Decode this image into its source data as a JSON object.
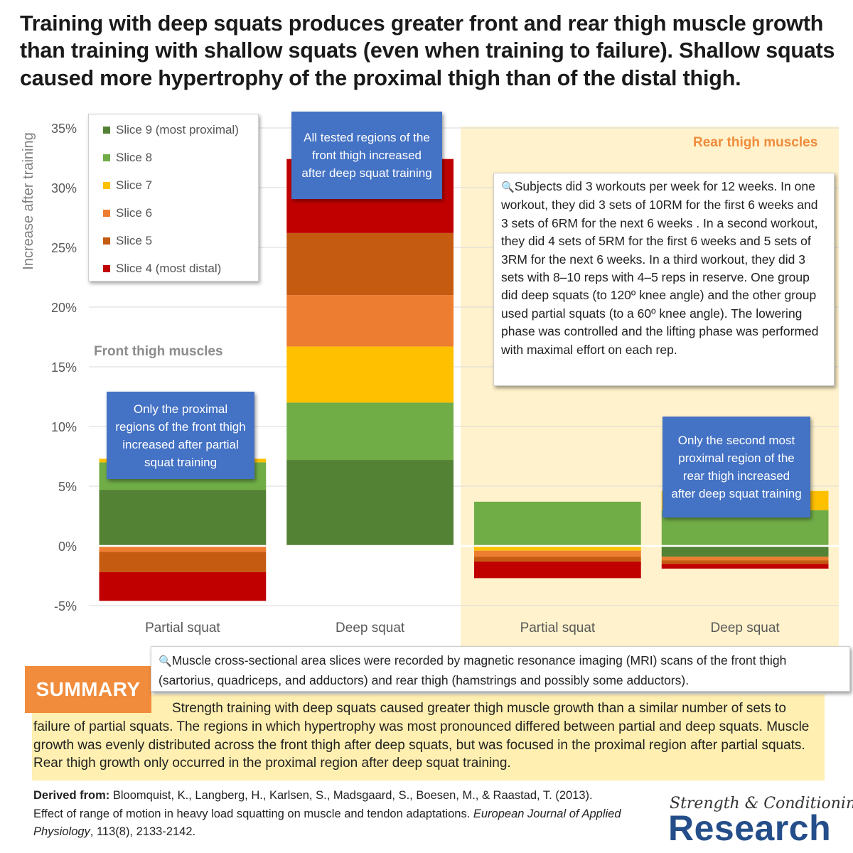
{
  "title": "Training with deep squats produces greater front and rear thigh muscle growth than training with shallow squats (even when training to failure). Shallow squats caused more hypertrophy of the proximal thigh than of the distal thigh.",
  "chart_data": {
    "type": "bar",
    "stacked": true,
    "ylabel": "Increase after training",
    "ylim": [
      -5,
      35
    ],
    "yticks": [
      -5,
      0,
      5,
      10,
      15,
      20,
      25,
      30,
      35
    ],
    "ytick_labels": [
      "-5%",
      "0%",
      "5%",
      "10%",
      "15%",
      "20%",
      "25%",
      "30%",
      "35%"
    ],
    "categories": [
      "Partial squat",
      "Deep squat",
      "Partial squat",
      "Deep squat"
    ],
    "groups": [
      {
        "name": "Front thigh muscles",
        "categories": [
          0,
          1
        ]
      },
      {
        "name": "Rear thigh muscles",
        "categories": [
          2,
          3
        ]
      }
    ],
    "series": [
      {
        "name": "Slice 9 (most proximal)",
        "color": "#548235",
        "values": [
          4.7,
          7.2,
          0.0,
          -0.9
        ]
      },
      {
        "name": "Slice 8",
        "color": "#70ad47",
        "values": [
          2.3,
          4.8,
          3.7,
          3.0
        ]
      },
      {
        "name": "Slice 7",
        "color": "#ffc000",
        "values": [
          0.3,
          4.7,
          -0.4,
          1.6
        ]
      },
      {
        "name": "Slice 6",
        "color": "#ed7d31",
        "values": [
          -0.5,
          4.3,
          -0.5,
          -0.3
        ]
      },
      {
        "name": "Slice 5",
        "color": "#c55a11",
        "values": [
          -1.7,
          5.2,
          -0.4,
          -0.3
        ]
      },
      {
        "name": "Slice 4 (most distal)",
        "color": "#c00000",
        "values": [
          -2.4,
          6.2,
          -1.4,
          -0.4
        ]
      }
    ]
  },
  "annotations": {
    "front_label": "Front thigh muscles",
    "rear_label": "Rear thigh muscles",
    "callout_deep": "All tested regions of the front thigh increased after deep squat training",
    "callout_partial": "Only the proximal regions of the front thigh increased after partial squat training",
    "callout_rear": "Only the second most proximal region of the rear thigh increased after deep squat training",
    "methods": "Subjects did 3 workouts per week for 12 weeks. In one workout, they did 3 sets of 10RM for the first 6 weeks and 3 sets of 6RM for the next 6 weeks . In a second workout, they did 4 sets of 5RM for the first 6 weeks and 5 sets of 3RM for the next 6 weeks. In a third workout, they did 3 sets with 8–10 reps with 4–5 reps in reserve. One group did deep squats (to 120º knee angle) and the other group used partial squats (to a 60º knee angle). The lowering phase was controlled and the lifting phase was performed with maximal effort on each rep.",
    "mri_note": "Muscle cross-sectional area slices were recorded by magnetic resonance imaging (MRI) scans of the front thigh (sartorius, quadriceps, and adductors) and rear thigh (hamstrings and possibly some adductors)."
  },
  "colors": {
    "rear_panel": "#fff2cc",
    "callout": "#4472c4",
    "summary_tag": "#f08c3c",
    "summary_box": "#ffefb0",
    "brand": "#244e89"
  },
  "summary": {
    "label": "SUMMARY",
    "text": "Strength training with deep squats caused greater thigh muscle growth than a similar number of sets to failure of partial squats. The regions in which hypertrophy was most pronounced differed between partial and deep squats. Muscle growth was evenly distributed across the front thigh after deep squats, but was focused in the proximal region after partial squats. Rear thigh growth only occurred in the proximal region after deep squat training."
  },
  "citation": {
    "label": "Derived from:",
    "authors": "Bloomquist, K., Langberg, H., Karlsen, S., Madsgaard, S., Boesen, M., & Raastad, T. (2013). Effect of range of motion in heavy load squatting on muscle and tendon adaptations.",
    "journal": "European Journal of Applied Physiology",
    "volume": ", 113(8), 2133-2142."
  },
  "brand": {
    "line1": "Strength & Conditioning",
    "line2": "Research"
  },
  "icons": {
    "note": "magnifier-icon"
  }
}
